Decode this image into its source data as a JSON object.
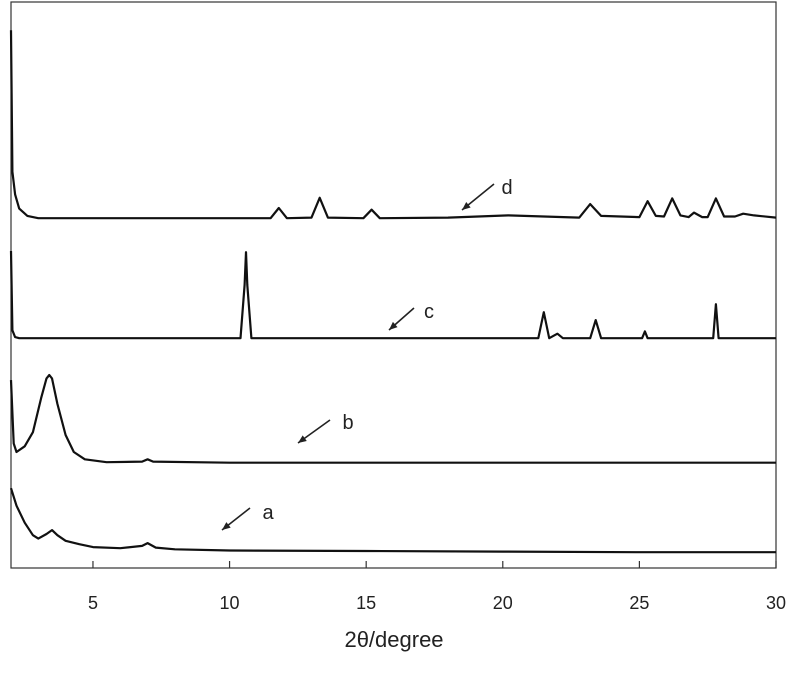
{
  "chart_data": {
    "type": "line",
    "x_label": "2θ/degree",
    "xlim": [
      2,
      30
    ],
    "xticks": [
      5,
      10,
      15,
      20,
      25,
      30
    ],
    "ylim": [
      0,
      100
    ],
    "color": "#111111",
    "annotations": [
      {
        "text": "a"
      },
      {
        "text": "b"
      },
      {
        "text": "c"
      },
      {
        "text": "d"
      }
    ],
    "series": [
      {
        "x": [
          2,
          2.2,
          2.5,
          2.8,
          3,
          3.3,
          3.5,
          3.7,
          4,
          4.5,
          5,
          6,
          6.8,
          7,
          7.3,
          8,
          10,
          15,
          20,
          25,
          30
        ],
        "values": [
          14.1,
          11,
          8,
          5.8,
          5.2,
          6,
          6.7,
          5.8,
          4.8,
          4.2,
          3.7,
          3.5,
          3.9,
          4.4,
          3.6,
          3.3,
          3.1,
          3.0,
          2.9,
          2.8,
          2.8
        ]
      },
      {
        "x": [
          2,
          2.1,
          2.2,
          2.5,
          2.8,
          3.1,
          3.3,
          3.4,
          3.5,
          3.7,
          4,
          4.3,
          4.7,
          5.5,
          6.8,
          7,
          7.2,
          10,
          30
        ],
        "values": [
          33.2,
          22,
          20.5,
          21.5,
          24,
          30,
          33.5,
          34.1,
          33.5,
          29,
          23.5,
          20.5,
          19.2,
          18.7,
          18.8,
          19.2,
          18.8,
          18.6,
          18.6
        ]
      },
      {
        "x": [
          2,
          2.05,
          2.15,
          2.3,
          5,
          10.4,
          10.55,
          10.6,
          10.65,
          10.8,
          21.3,
          21.5,
          21.7,
          22,
          22.2,
          23.2,
          23.4,
          23.6,
          25.1,
          25.2,
          25.3,
          27.7,
          27.8,
          27.9,
          30
        ],
        "values": [
          56,
          42,
          40.8,
          40.6,
          40.6,
          40.6,
          50,
          55.8,
          50,
          40.6,
          40.6,
          45.2,
          40.6,
          41.4,
          40.6,
          40.6,
          43.8,
          40.6,
          40.6,
          41.8,
          40.6,
          40.6,
          46.6,
          40.6,
          40.6
        ]
      },
      {
        "x": [
          2,
          2.05,
          2.15,
          2.3,
          2.6,
          3,
          5,
          8,
          11.5,
          11.8,
          12.1,
          13,
          13.3,
          13.6,
          14.9,
          15.2,
          15.5,
          18,
          20.2,
          22.8,
          23.2,
          23.6,
          25,
          25.3,
          25.6,
          25.9,
          26.2,
          26.5,
          26.8,
          27,
          27.3,
          27.5,
          27.8,
          28.1,
          28.5,
          28.8,
          29.2,
          30
        ],
        "values": [
          95,
          70,
          66,
          63.5,
          62.2,
          61.8,
          61.8,
          61.8,
          61.8,
          63.6,
          61.8,
          61.9,
          65.4,
          61.9,
          61.8,
          63.3,
          61.8,
          61.9,
          62.3,
          61.9,
          64.3,
          62.2,
          62,
          64.8,
          62.2,
          62.1,
          65.3,
          62.3,
          62,
          62.8,
          62,
          62,
          65.3,
          62.1,
          62.1,
          62.6,
          62.3,
          61.9
        ]
      }
    ]
  }
}
